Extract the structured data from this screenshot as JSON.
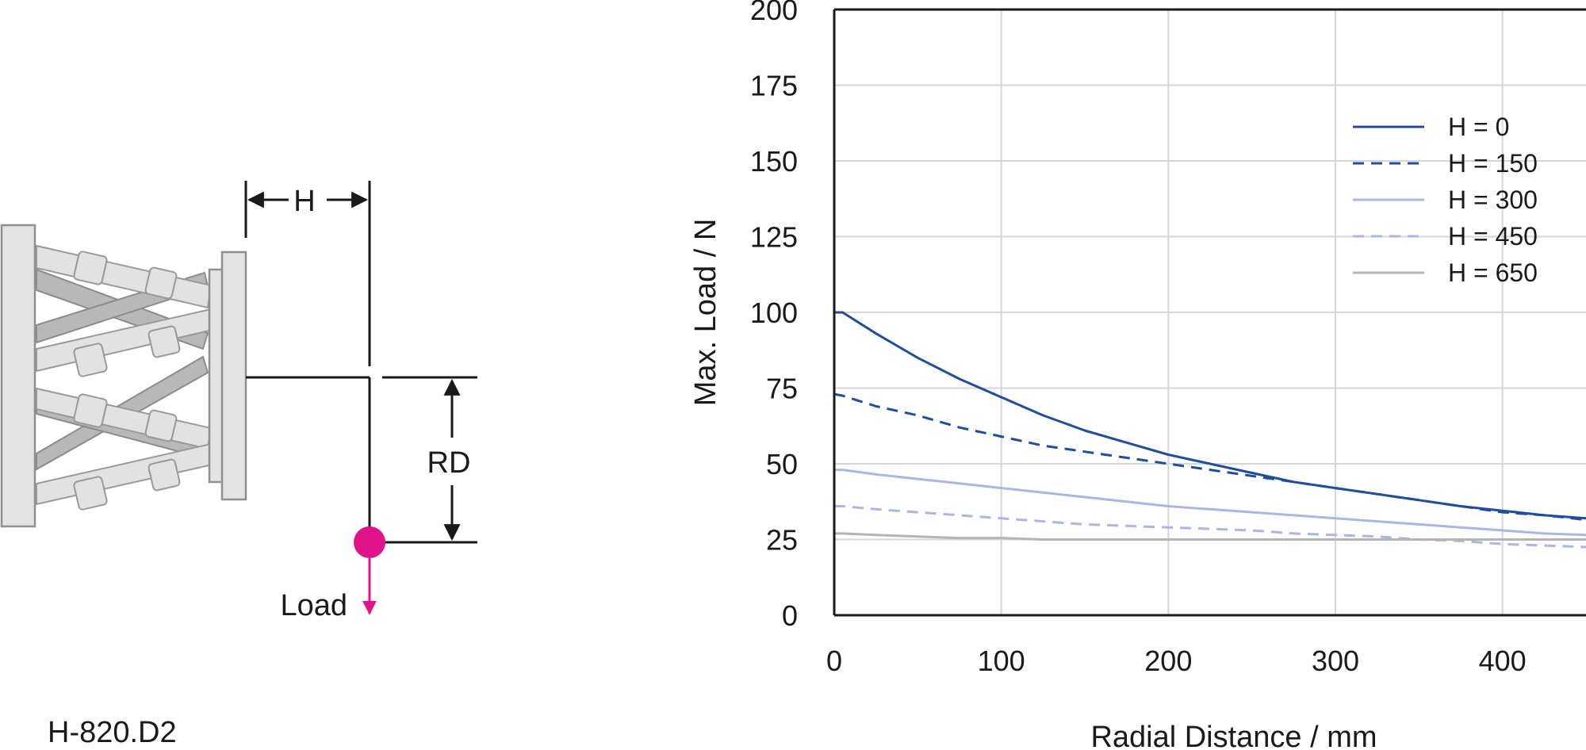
{
  "diagram": {
    "dimension_h": "H",
    "dimension_rd": "RD",
    "load_label": "Load",
    "model_name": "H-820.D2",
    "load_color": "#e0128c"
  },
  "chart_data": {
    "type": "line",
    "title": "",
    "xlabel": "Radial Distance / mm",
    "ylabel": "Max. Load / N",
    "xlim": [
      0,
      450
    ],
    "ylim": [
      0,
      200
    ],
    "xticks": [
      0,
      100,
      200,
      300,
      400
    ],
    "yticks": [
      0,
      25,
      50,
      75,
      100,
      125,
      150,
      175,
      200
    ],
    "grid": true,
    "legend_position": "top-right",
    "x": [
      0,
      5,
      25,
      50,
      75,
      100,
      125,
      150,
      175,
      200,
      225,
      250,
      275,
      300,
      325,
      350,
      375,
      400,
      425,
      450
    ],
    "series": [
      {
        "name": "H = 0",
        "color": "#1f4e9c",
        "style": "solid",
        "values": [
          100,
          100,
          93,
          85,
          78,
          72,
          66,
          61,
          57,
          53,
          50,
          47,
          44,
          42,
          40,
          38,
          36,
          34.5,
          33,
          32
        ]
      },
      {
        "name": "H = 150",
        "color": "#1f4e9c",
        "style": "dashed",
        "values": [
          73,
          72.5,
          69,
          66,
          62,
          59,
          56,
          54,
          52,
          50,
          48,
          46,
          44,
          42,
          40,
          38,
          36,
          34,
          33,
          31.5
        ]
      },
      {
        "name": "H = 300",
        "color": "#a9b7e2",
        "style": "solid",
        "values": [
          48,
          48,
          46.5,
          45,
          43.5,
          42,
          40.5,
          39,
          37.5,
          36,
          35,
          34,
          33,
          32,
          31,
          30,
          29,
          28,
          27,
          26.5
        ]
      },
      {
        "name": "H = 450",
        "color": "#a9b7e2",
        "style": "dashed",
        "values": [
          36,
          36,
          35,
          34,
          33,
          32,
          31,
          30,
          29.5,
          29,
          28.5,
          28,
          27,
          26.5,
          26,
          25,
          24.5,
          23.5,
          23,
          22.5
        ]
      },
      {
        "name": "H = 650",
        "color": "#b4b4b4",
        "style": "solid",
        "values": [
          27,
          27,
          26.5,
          26,
          25.5,
          25.5,
          25,
          25,
          25,
          25,
          25,
          25,
          25,
          25,
          25,
          25,
          25,
          25,
          25,
          25
        ]
      }
    ]
  }
}
